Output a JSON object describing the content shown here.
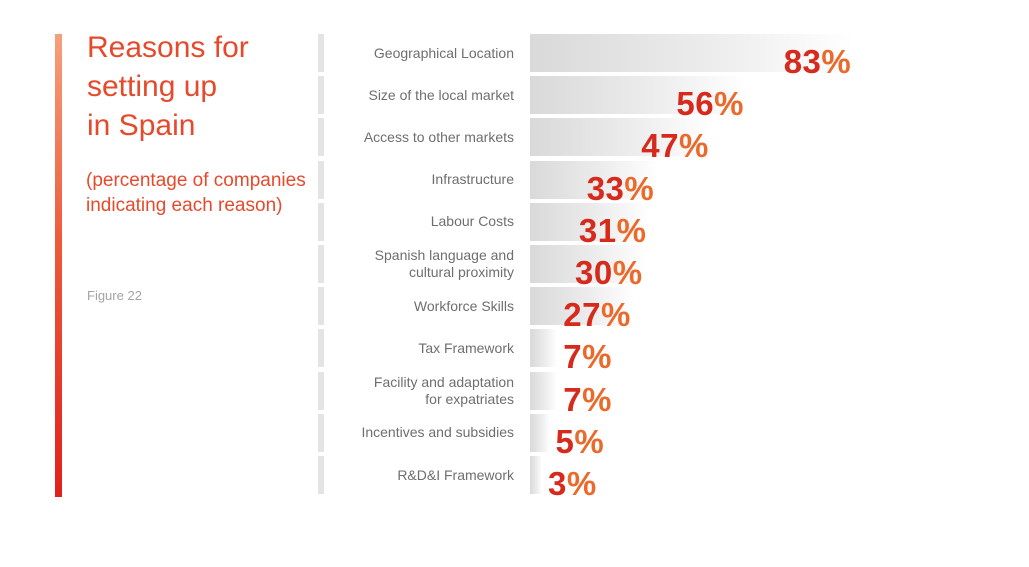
{
  "title": "Reasons for setting up in Spain",
  "title_lines": [
    "Reasons for",
    "setting up",
    "in Spain"
  ],
  "subtitle": "(percentage of companies indicating each reason)",
  "figure_label": "Figure 22",
  "colors": {
    "accent_top": "#f5a07c",
    "accent_bottom": "#e0201c",
    "value_number": "#d62a1c",
    "value_percent": "#ea6a2c",
    "title": "#e64a2c"
  },
  "chart_data": {
    "type": "bar",
    "orientation": "horizontal",
    "title": "Reasons for setting up in Spain",
    "subtitle": "(percentage of companies indicating each reason)",
    "categories": [
      "Geographical Location",
      "Size of the local market",
      "Access to other markets",
      "Infrastructure",
      "Labour Costs",
      "Spanish language and cultural proximity",
      "Workforce Skills",
      "Tax Framework",
      "Facility and adaptation for expatriates",
      "Incentives and subsidies",
      "R&D&I Framework"
    ],
    "category_lines": [
      [
        "Geographical Location"
      ],
      [
        "Size of the local market"
      ],
      [
        "Access to other markets"
      ],
      [
        "Infrastructure"
      ],
      [
        "Labour Costs"
      ],
      [
        "Spanish language and",
        "cultural proximity"
      ],
      [
        "Workforce Skills"
      ],
      [
        "Tax Framework"
      ],
      [
        "Facility and adaptation",
        "for expatriates"
      ],
      [
        "Incentives and subsidies"
      ],
      [
        "R&D&I Framework"
      ]
    ],
    "values": [
      83,
      56,
      47,
      33,
      31,
      30,
      27,
      7,
      7,
      5,
      3
    ],
    "unit": "%",
    "xlim": [
      0,
      100
    ],
    "grid": false,
    "legend": "none"
  }
}
